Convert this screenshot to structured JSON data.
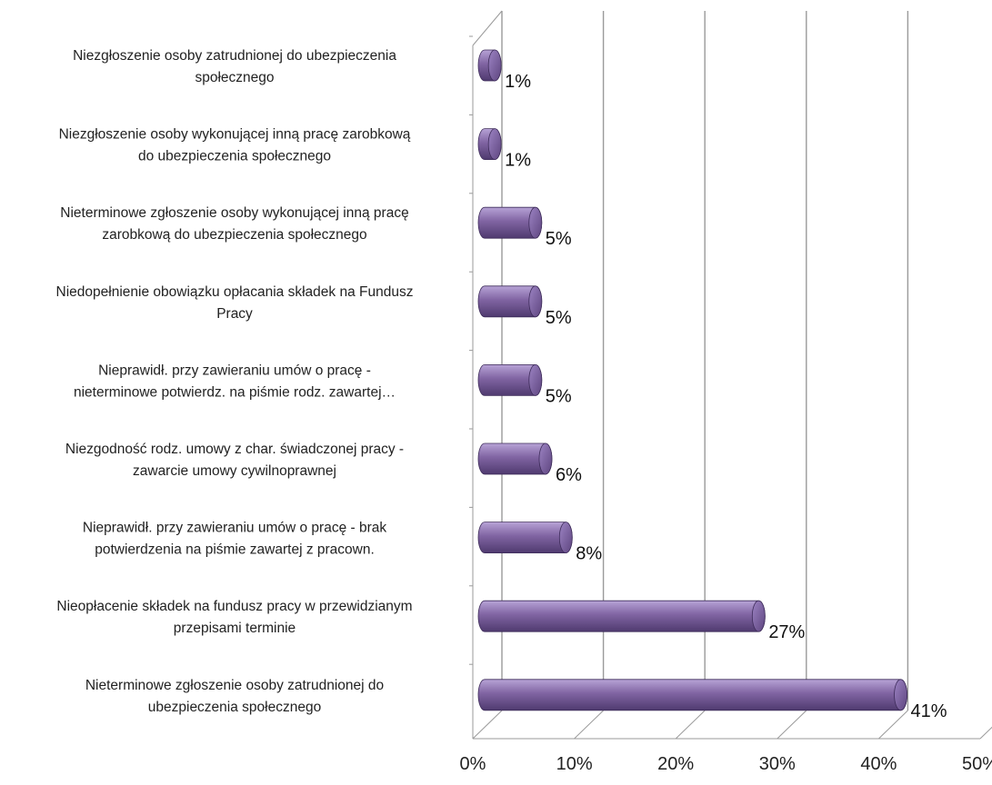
{
  "chart_data": {
    "type": "bar",
    "orientation": "horizontal",
    "categories": [
      "Niezgłoszenie osoby zatrudnionej do ubezpieczenia społecznego",
      "Niezgłoszenie osoby wykonującej inną pracę zarobkową do ubezpieczenia społecznego",
      "Nieterminowe zgłoszenie osoby wykonującej inną pracę zarobkową do ubezpieczenia społecznego",
      "Niedopełnienie obowiązku opłacania składek na Fundusz Pracy",
      "Nieprawidł. przy zawieraniu umów o pracę - nieterminowe potwierdz. na piśmie rodz. zawartej…",
      "Niezgodność rodz. umowy z char. świadczonej pracy - zawarcie umowy cywilnoprawnej",
      "Nieprawidł. przy zawieraniu umów o pracę - brak potwierdzenia na piśmie zawartej z pracown.",
      "Nieopłacenie składek na fundusz pracy w przewidzianym przepisami terminie",
      "Nieterminowe zgłoszenie osoby zatrudnionej do ubezpieczenia społecznego"
    ],
    "category_lines": [
      [
        "Niezgłoszenie osoby zatrudnionej do ubezpieczenia",
        "społecznego"
      ],
      [
        "Niezgłoszenie osoby wykonującej inną pracę zarobkową",
        "do ubezpieczenia społecznego"
      ],
      [
        "Nieterminowe zgłoszenie osoby wykonującej inną pracę",
        "zarobkową do ubezpieczenia społecznego"
      ],
      [
        "Niedopełnienie obowiązku opłacania składek na Fundusz",
        "Pracy"
      ],
      [
        "Nieprawidł. przy zawieraniu umów o pracę -",
        "nieterminowe potwierdz. na piśmie rodz. zawartej…"
      ],
      [
        "Niezgodność rodz. umowy z char. świadczonej pracy -",
        "zawarcie umowy cywilnoprawnej"
      ],
      [
        "Nieprawidł. przy zawieraniu umów o pracę - brak",
        "potwierdzenia na piśmie zawartej z pracown."
      ],
      [
        "Nieopłacenie składek na fundusz pracy w przewidzianym",
        "przepisami terminie"
      ],
      [
        "Nieterminowe zgłoszenie osoby zatrudnionej do",
        "ubezpieczenia społecznego"
      ]
    ],
    "values": [
      1,
      1,
      5,
      5,
      5,
      6,
      8,
      27,
      41
    ],
    "data_labels": [
      "1%",
      "1%",
      "5%",
      "5%",
      "5%",
      "6%",
      "8%",
      "27%",
      "41%"
    ],
    "xlim": [
      0,
      50
    ],
    "xticks": [
      "0%",
      "10%",
      "20%",
      "30%",
      "40%",
      "50%"
    ],
    "grid": true,
    "colors": {
      "bar": "#8064A2",
      "bar_light": "#B7A3D6",
      "bar_dark": "#4F3A6F",
      "grid": "#9A9A9A"
    }
  }
}
